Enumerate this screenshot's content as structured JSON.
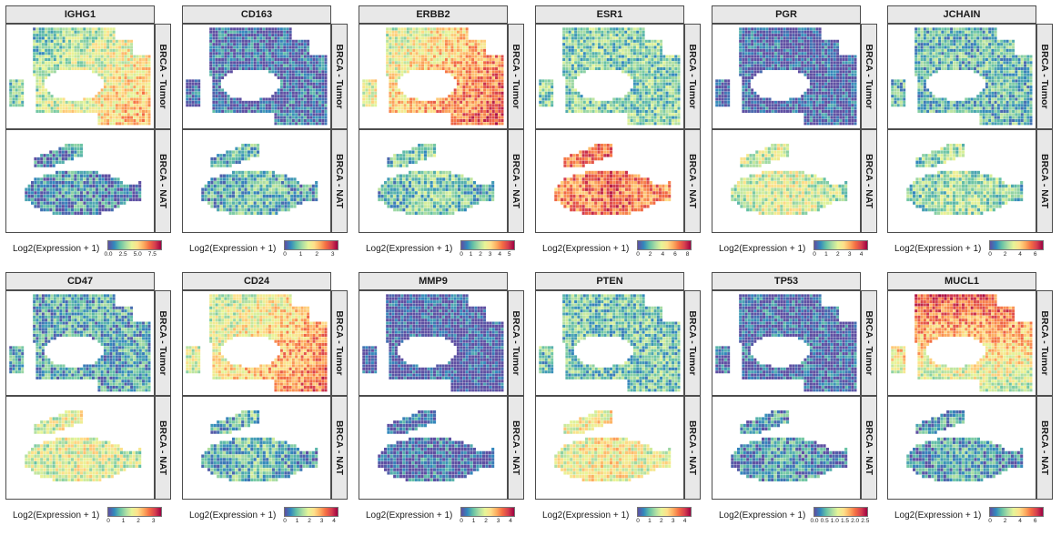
{
  "figure": {
    "conditions": [
      "BRCA - Tumor",
      "BRCA - NAT"
    ],
    "legend_title": "Log2(Expression + 1)",
    "palette": [
      "#5e4fa2",
      "#3288bd",
      "#66c2a5",
      "#abdda4",
      "#e6f598",
      "#fee08b",
      "#fdae61",
      "#f46d43",
      "#d53e4f",
      "#9e0142"
    ]
  },
  "chart_data": [
    {
      "type": "heatmap",
      "gene": "IGHG1",
      "tumor_level": 0.42,
      "nat_level": 0.08,
      "legend_ticks": [
        "0.0",
        "2.5",
        "5.0",
        "7.5"
      ],
      "legend_range": [
        0,
        9
      ]
    },
    {
      "type": "heatmap",
      "gene": "CD163",
      "tumor_level": 0.05,
      "nat_level": 0.18,
      "legend_ticks": [
        "0",
        "1",
        "2",
        "3"
      ],
      "legend_range": [
        0,
        3.3
      ]
    },
    {
      "type": "heatmap",
      "gene": "ERBB2",
      "tumor_level": 0.6,
      "nat_level": 0.22,
      "legend_ticks": [
        "0",
        "1",
        "2",
        "3",
        "4",
        "5"
      ],
      "legend_range": [
        0,
        5.5
      ]
    },
    {
      "type": "heatmap",
      "gene": "ESR1",
      "tumor_level": 0.28,
      "nat_level": 0.72,
      "legend_ticks": [
        "0",
        "2",
        "4",
        "6",
        "8"
      ],
      "legend_range": [
        0,
        8.5
      ]
    },
    {
      "type": "heatmap",
      "gene": "PGR",
      "tumor_level": 0.03,
      "nat_level": 0.38,
      "legend_ticks": [
        "0",
        "1",
        "2",
        "3",
        "4"
      ],
      "legend_range": [
        0,
        4.5
      ]
    },
    {
      "type": "heatmap",
      "gene": "JCHAIN",
      "tumor_level": 0.22,
      "nat_level": 0.28,
      "legend_ticks": [
        "0",
        "2",
        "4",
        "6"
      ],
      "legend_range": [
        0,
        7
      ]
    },
    {
      "type": "heatmap",
      "gene": "CD47",
      "tumor_level": 0.18,
      "nat_level": 0.4,
      "legend_ticks": [
        "0",
        "1",
        "2",
        "3"
      ],
      "legend_range": [
        0,
        3.5
      ]
    },
    {
      "type": "heatmap",
      "gene": "CD24",
      "tumor_level": 0.55,
      "nat_level": 0.18,
      "legend_ticks": [
        "0",
        "1",
        "2",
        "3",
        "4"
      ],
      "legend_range": [
        0,
        4.3
      ]
    },
    {
      "type": "heatmap",
      "gene": "MMP9",
      "tumor_level": 0.01,
      "nat_level": 0.01,
      "legend_ticks": [
        "0",
        "1",
        "2",
        "3",
        "4"
      ],
      "legend_range": [
        0,
        4.3
      ]
    },
    {
      "type": "heatmap",
      "gene": "PTEN",
      "tumor_level": 0.25,
      "nat_level": 0.45,
      "legend_ticks": [
        "0",
        "1",
        "2",
        "3",
        "4"
      ],
      "legend_range": [
        0,
        4.5
      ]
    },
    {
      "type": "heatmap",
      "gene": "TP53",
      "tumor_level": 0.04,
      "nat_level": 0.1,
      "legend_ticks": [
        "0.0",
        "0.5",
        "1.0",
        "1.5",
        "2.0",
        "2.5"
      ],
      "legend_range": [
        0,
        2.6
      ]
    },
    {
      "type": "heatmap",
      "gene": "MUCL1",
      "tumor_level": 0.6,
      "nat_level": 0.12,
      "legend_ticks": [
        "0",
        "2",
        "4",
        "6"
      ],
      "legend_range": [
        0,
        7
      ]
    }
  ]
}
